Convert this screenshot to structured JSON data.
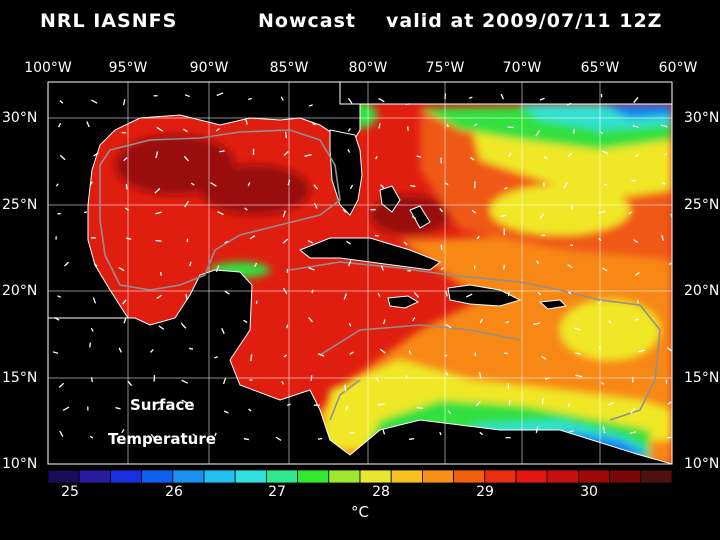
{
  "header": {
    "source": "NRL IASNFS",
    "kind": "Nowcast",
    "valid": "valid at 2009/07/11 12Z"
  },
  "axes": {
    "lon_labels": [
      "100°W",
      "95°W",
      "90°W",
      "85°W",
      "80°W",
      "75°W",
      "70°W",
      "65°W",
      "60°W"
    ],
    "lat_labels": [
      "30°N",
      "25°N",
      "20°N",
      "15°N",
      "10°N"
    ]
  },
  "overlay": {
    "line1": "Surface",
    "line2": "Temperature"
  },
  "colorbar": {
    "tick_labels": [
      "25",
      "26",
      "27",
      "28",
      "29",
      "30"
    ],
    "unit": "°C",
    "colors": [
      "#1a0a5a",
      "#2a1aa0",
      "#1a30e0",
      "#1060f0",
      "#1a90f0",
      "#20c0f0",
      "#30e0e0",
      "#30e890",
      "#30e830",
      "#a0e830",
      "#e8e830",
      "#f8c020",
      "#f89018",
      "#f06010",
      "#e83010",
      "#e01810",
      "#c81010",
      "#a00808",
      "#780808",
      "#501010"
    ],
    "sea_colors": {
      "red": "#e01e10",
      "dark_red": "#9a1010",
      "orange_red": "#f05818",
      "orange": "#f88818",
      "yellow": "#f0e828",
      "green": "#30e040",
      "cyan": "#30e0d0",
      "blue": "#1880f0"
    }
  }
}
